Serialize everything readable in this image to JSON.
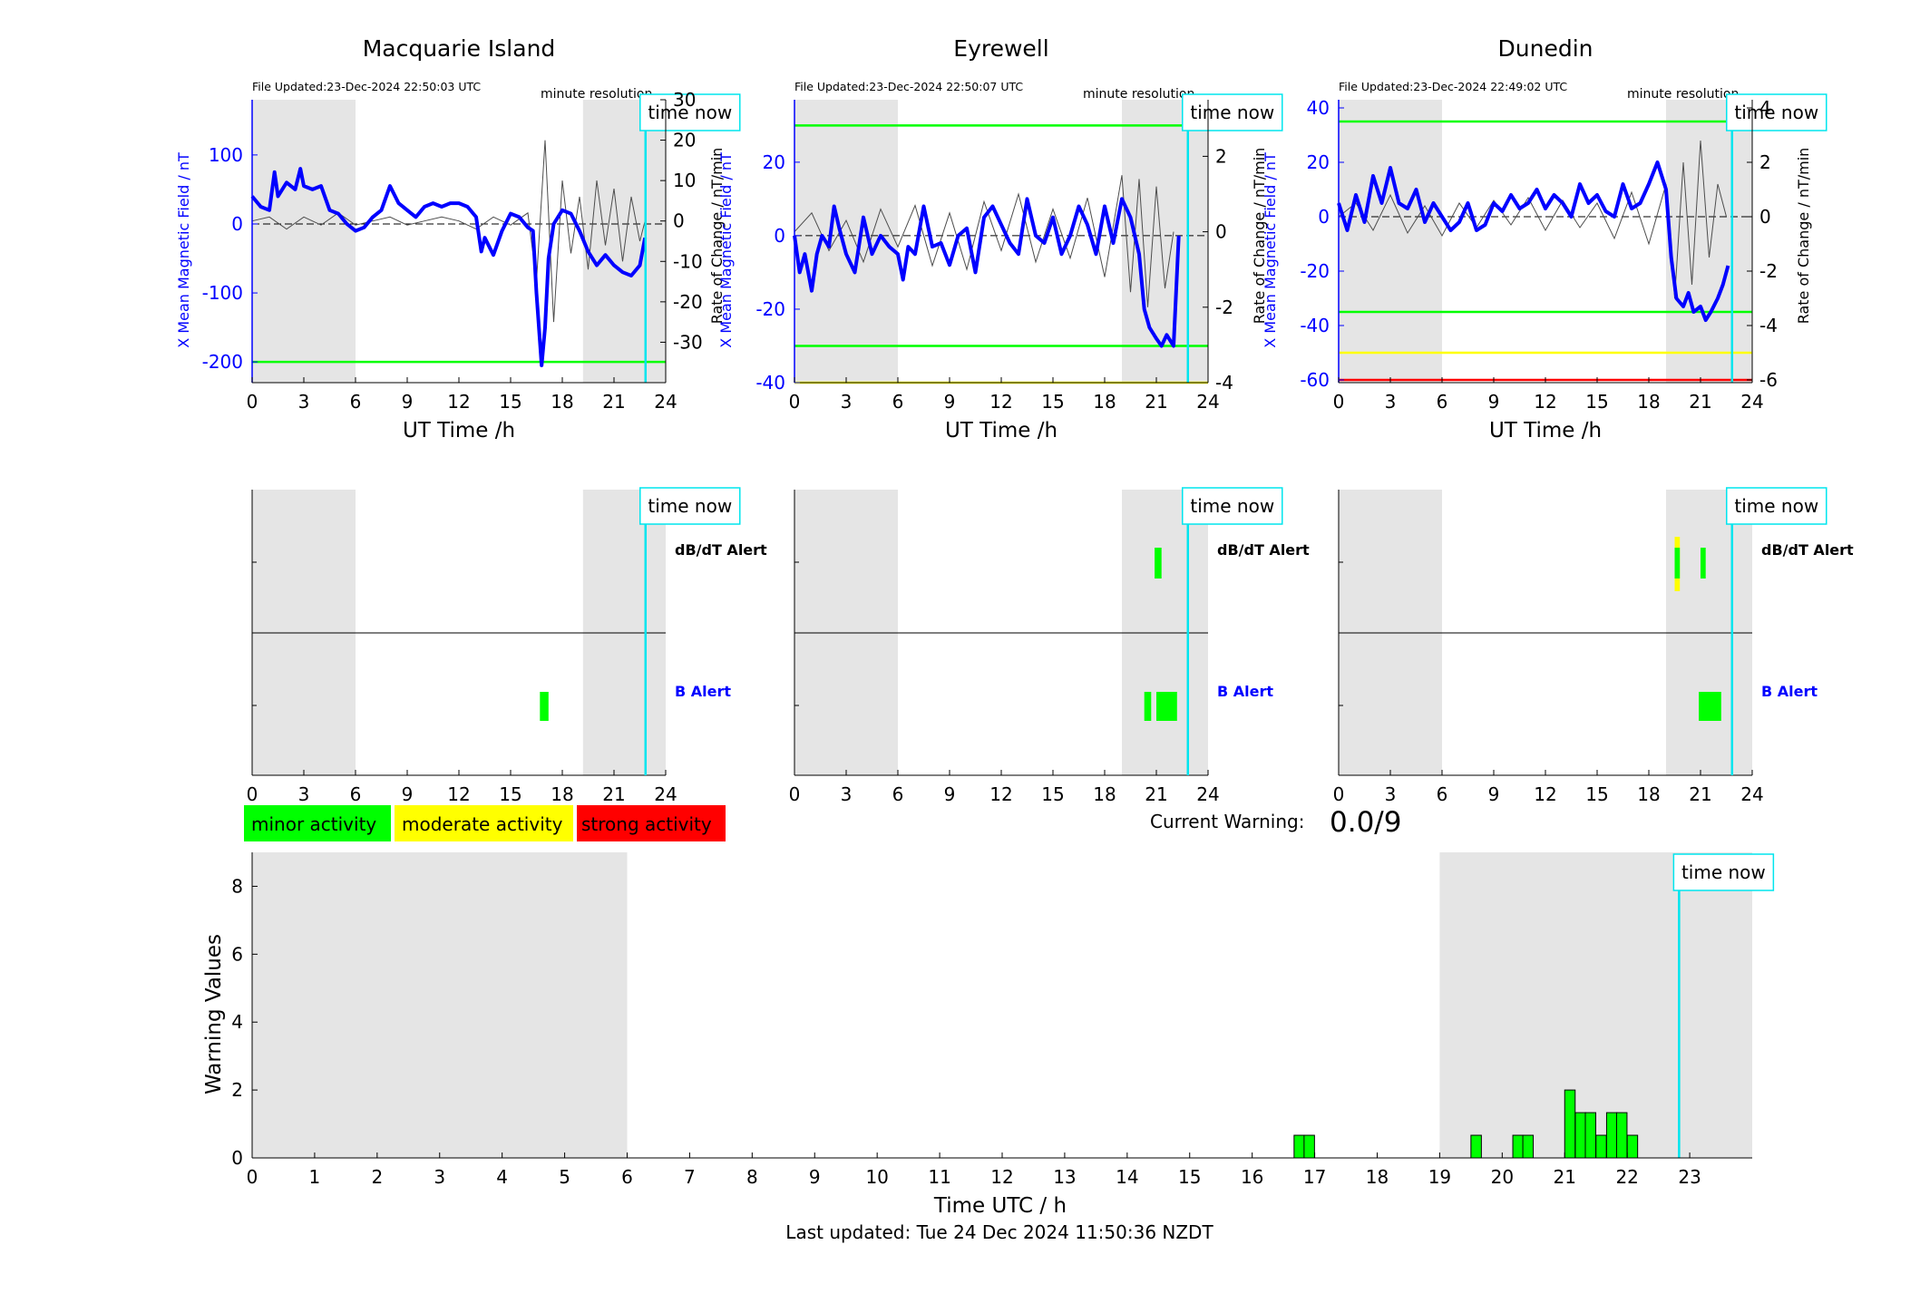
{
  "colors": {
    "shade": "#e5e5e5",
    "field_line": "#0000ff",
    "rate_line": "#4d4d4d",
    "time_now": "#00e5ee",
    "minor": "#00ff00",
    "moderate": "#ffff00",
    "strong": "#ff0000"
  },
  "common": {
    "minute_resolution": "minute resolution",
    "time_now_label": "time now",
    "x_label": "UT Time /h",
    "y_left_label": "X Mean Magnetic Field / nT",
    "y_right_label": "Rate of Change / nT/min",
    "dbdt_alert": "dB/dT Alert",
    "b_alert": "B Alert",
    "x_ticks": [
      "0",
      "3",
      "6",
      "9",
      "12",
      "15",
      "18",
      "21",
      "24"
    ]
  },
  "chart_data": [
    {
      "type": "line",
      "station": "Macquarie Island",
      "title": "Macquarie Island",
      "file_updated": "File Updated:23-Dec-2024 22:50:03 UTC",
      "xlim": [
        0,
        24
      ],
      "ylim_left": [
        -230,
        180
      ],
      "ylim_right": [
        -40,
        30
      ],
      "y_left_ticks": [
        "100",
        "0",
        "-100",
        "-200"
      ],
      "y_left_values": [
        100,
        0,
        -100,
        -200
      ],
      "y_right_ticks": [
        "30",
        "20",
        "10",
        "0",
        "-10",
        "-20",
        "-30"
      ],
      "y_right_values": [
        30,
        20,
        10,
        0,
        -10,
        -20,
        -30
      ],
      "shaded_intervals": [
        [
          0,
          6
        ],
        [
          19.2,
          24
        ]
      ],
      "threshold_lines": [
        {
          "value": -200,
          "color": "#00ff00"
        }
      ],
      "time_now": 22.83,
      "series": [
        {
          "axis": "left",
          "x": [
            0,
            0.5,
            1,
            1.3,
            1.5,
            2,
            2.5,
            2.8,
            3,
            3.5,
            4,
            4.5,
            5,
            5.5,
            6,
            6.5,
            7,
            7.5,
            8,
            8.5,
            9,
            9.5,
            10,
            10.5,
            11,
            11.5,
            12,
            12.5,
            13,
            13.3,
            13.5,
            14,
            14.5,
            15,
            15.5,
            16,
            16.3,
            16.5,
            16.7,
            16.8,
            17,
            17.2,
            17.5,
            18,
            18.5,
            19,
            19.5,
            20,
            20.5,
            21,
            21.5,
            22,
            22.5,
            22.8
          ],
          "y": [
            40,
            25,
            20,
            75,
            40,
            60,
            50,
            80,
            55,
            50,
            55,
            20,
            15,
            0,
            -10,
            -5,
            10,
            20,
            55,
            30,
            20,
            10,
            25,
            30,
            25,
            30,
            30,
            25,
            10,
            -40,
            -20,
            -45,
            -10,
            15,
            10,
            -5,
            -10,
            -100,
            -170,
            -205,
            -150,
            -50,
            0,
            20,
            15,
            -10,
            -40,
            -60,
            -45,
            -60,
            -70,
            -75,
            -60,
            -20
          ]
        },
        {
          "axis": "right",
          "x": [
            0,
            1,
            2,
            3,
            4,
            5,
            6,
            7,
            8,
            9,
            10,
            11,
            12,
            13,
            14,
            15,
            16,
            16.5,
            17,
            17.5,
            18,
            18.5,
            19,
            19.5,
            20,
            20.5,
            21,
            21.5,
            22,
            22.5,
            22.8
          ],
          "y": [
            0,
            1,
            -2,
            1,
            -1,
            2,
            -1,
            0,
            1,
            -1,
            0,
            1,
            0,
            -2,
            1,
            -1,
            2,
            -15,
            20,
            -25,
            10,
            -8,
            6,
            -12,
            10,
            -6,
            8,
            -10,
            6,
            -5,
            0
          ]
        }
      ]
    },
    {
      "type": "line",
      "station": "Eyrewell",
      "title": "Eyrewell",
      "file_updated": "File Updated:23-Dec-2024 22:50:07 UTC",
      "xlim": [
        0,
        24
      ],
      "ylim_left": [
        -40,
        37
      ],
      "ylim_right": [
        -4,
        3.5
      ],
      "y_left_ticks": [
        "20",
        "0",
        "-20",
        "-40"
      ],
      "y_left_values": [
        20,
        0,
        -20,
        -40
      ],
      "y_right_ticks": [
        "2",
        "0",
        "-2",
        "-4"
      ],
      "y_right_values": [
        2,
        0,
        -2,
        -4
      ],
      "shaded_intervals": [
        [
          0,
          6
        ],
        [
          19,
          24
        ]
      ],
      "threshold_lines": [
        {
          "value": 30,
          "color": "#00ff00"
        },
        {
          "value": -30,
          "color": "#00ff00"
        },
        {
          "value": -40,
          "color": "#ffff00"
        }
      ],
      "time_now": 22.83,
      "series": [
        {
          "axis": "left",
          "x": [
            0,
            0.3,
            0.6,
            1,
            1.3,
            1.6,
            2,
            2.3,
            2.6,
            3,
            3.5,
            4,
            4.5,
            5,
            5.5,
            6,
            6.3,
            6.6,
            7,
            7.5,
            8,
            8.5,
            9,
            9.5,
            10,
            10.5,
            11,
            11.5,
            12,
            12.5,
            13,
            13.5,
            14,
            14.5,
            15,
            15.5,
            16,
            16.5,
            17,
            17.5,
            18,
            18.5,
            19,
            19.5,
            20,
            20.3,
            20.6,
            21,
            21.3,
            21.6,
            22,
            22.3
          ],
          "y": [
            0,
            -10,
            -5,
            -15,
            -5,
            0,
            -3,
            8,
            2,
            -5,
            -10,
            5,
            -5,
            0,
            -3,
            -5,
            -12,
            -3,
            -5,
            8,
            -3,
            -2,
            -8,
            0,
            2,
            -10,
            5,
            8,
            3,
            -2,
            -5,
            10,
            0,
            -2,
            5,
            -5,
            0,
            8,
            3,
            -5,
            8,
            -2,
            10,
            5,
            -5,
            -20,
            -25,
            -28,
            -30,
            -27,
            -30,
            0
          ]
        },
        {
          "axis": "right",
          "x": [
            0,
            1,
            2,
            3,
            4,
            5,
            6,
            7,
            8,
            9,
            10,
            11,
            12,
            13,
            14,
            15,
            16,
            17,
            18,
            19,
            19.5,
            20,
            20.5,
            21,
            21.5,
            22
          ],
          "y": [
            0,
            0.5,
            -0.5,
            0.3,
            -0.8,
            0.6,
            -0.4,
            0.7,
            -0.9,
            0.5,
            -1,
            0.8,
            -0.5,
            1,
            -0.8,
            0.6,
            -0.7,
            0.9,
            -1.2,
            1.5,
            -1.6,
            1.4,
            -2,
            1.2,
            -1.5,
            0
          ]
        }
      ]
    },
    {
      "type": "line",
      "station": "Dunedin",
      "title": "Dunedin",
      "file_updated": "File Updated:23-Dec-2024 22:49:02 UTC",
      "xlim": [
        0,
        24
      ],
      "ylim_left": [
        -61,
        43
      ],
      "ylim_right": [
        -6.1,
        4.3
      ],
      "y_left_ticks": [
        "40",
        "20",
        "0",
        "-20",
        "-40",
        "-60"
      ],
      "y_left_values": [
        40,
        20,
        0,
        -20,
        -40,
        -60
      ],
      "y_right_ticks": [
        "4",
        "2",
        "0",
        "-2",
        "-4",
        "-6"
      ],
      "y_right_values": [
        4,
        2,
        0,
        -2,
        -4,
        -6
      ],
      "shaded_intervals": [
        [
          0,
          6
        ],
        [
          19,
          24
        ]
      ],
      "threshold_lines": [
        {
          "value": 35,
          "color": "#00ff00"
        },
        {
          "value": -35,
          "color": "#00ff00"
        },
        {
          "value": -50,
          "color": "#ffff00"
        },
        {
          "value": -60,
          "color": "#ff0000"
        }
      ],
      "time_now": 22.83,
      "series": [
        {
          "axis": "left",
          "x": [
            0,
            0.5,
            1,
            1.5,
            2,
            2.5,
            3,
            3.5,
            4,
            4.5,
            5,
            5.5,
            6,
            6.5,
            7,
            7.5,
            8,
            8.5,
            9,
            9.5,
            10,
            10.5,
            11,
            11.5,
            12,
            12.5,
            13,
            13.5,
            14,
            14.5,
            15,
            15.5,
            16,
            16.5,
            17,
            17.5,
            18,
            18.5,
            19,
            19.3,
            19.6,
            20,
            20.3,
            20.6,
            21,
            21.3,
            21.6,
            22,
            22.3,
            22.6
          ],
          "y": [
            5,
            -5,
            8,
            -2,
            15,
            5,
            18,
            5,
            3,
            10,
            -2,
            5,
            0,
            -5,
            -2,
            5,
            -5,
            -3,
            5,
            2,
            8,
            3,
            5,
            10,
            3,
            8,
            5,
            0,
            12,
            5,
            8,
            2,
            0,
            12,
            3,
            5,
            12,
            20,
            10,
            -15,
            -30,
            -33,
            -28,
            -35,
            -33,
            -38,
            -35,
            -30,
            -25,
            -18
          ]
        },
        {
          "axis": "right",
          "x": [
            0,
            1,
            2,
            3,
            4,
            5,
            6,
            7,
            8,
            9,
            10,
            11,
            12,
            13,
            14,
            15,
            16,
            17,
            18,
            19,
            19.5,
            20,
            20.5,
            21,
            21.5,
            22,
            22.5
          ],
          "y": [
            0,
            0.5,
            -0.5,
            0.8,
            -0.6,
            0.4,
            -0.7,
            0.5,
            -0.4,
            0.6,
            -0.3,
            0.7,
            -0.5,
            0.6,
            -0.4,
            0.5,
            -0.8,
            0.9,
            -1,
            1.2,
            -3,
            2,
            -2.5,
            2.8,
            -1.5,
            1.2,
            0
          ]
        }
      ]
    }
  ],
  "alerts": [
    {
      "station": "Macquarie Island",
      "dbdt": [],
      "b": [
        {
          "start": 16.7,
          "end": 17.2,
          "color": "#00ff00"
        }
      ]
    },
    {
      "station": "Eyrewell",
      "dbdt": [
        {
          "start": 20.9,
          "end": 21.3,
          "color": "#00ff00"
        }
      ],
      "b": [
        {
          "start": 20.3,
          "end": 20.7,
          "color": "#00ff00"
        },
        {
          "start": 21.0,
          "end": 22.2,
          "color": "#00ff00"
        }
      ]
    },
    {
      "station": "Dunedin",
      "dbdt": [
        {
          "start": 19.5,
          "end": 19.8,
          "color": "#ffff00",
          "inner": "#00ff00"
        },
        {
          "start": 21.0,
          "end": 21.3,
          "color": "#00ff00"
        }
      ],
      "b": [
        {
          "start": 20.9,
          "end": 22.2,
          "color": "#00ff00"
        }
      ]
    }
  ],
  "legend": [
    {
      "label": "minor activity",
      "color": "#00ff00"
    },
    {
      "label": "moderate activity",
      "color": "#ffff00"
    },
    {
      "label": "strong activity",
      "color": "#ff0000"
    }
  ],
  "current_warning": {
    "label": "Current Warning:",
    "value": "0.0/9"
  },
  "warning_chart": {
    "type": "bar",
    "x_label": "Time UTC / h",
    "y_label": "Warning Values",
    "xlim": [
      0,
      24
    ],
    "ylim": [
      0,
      9
    ],
    "x_ticks": [
      "0",
      "1",
      "2",
      "3",
      "4",
      "5",
      "6",
      "7",
      "8",
      "9",
      "10",
      "11",
      "12",
      "13",
      "14",
      "15",
      "16",
      "17",
      "18",
      "19",
      "20",
      "21",
      "22",
      "23"
    ],
    "y_ticks": [
      "0",
      "2",
      "4",
      "6",
      "8"
    ],
    "shaded_intervals": [
      [
        0,
        6
      ],
      [
        19,
        24
      ]
    ],
    "time_now": 22.83,
    "bar_width_h": 0.1667,
    "bars": [
      {
        "x": 16.67,
        "value": 0.667
      },
      {
        "x": 16.83,
        "value": 0.667
      },
      {
        "x": 19.5,
        "value": 0.667
      },
      {
        "x": 20.17,
        "value": 0.667
      },
      {
        "x": 20.33,
        "value": 0.667
      },
      {
        "x": 21.0,
        "value": 2.0
      },
      {
        "x": 21.17,
        "value": 1.333
      },
      {
        "x": 21.33,
        "value": 1.333
      },
      {
        "x": 21.5,
        "value": 0.667
      },
      {
        "x": 21.67,
        "value": 1.333
      },
      {
        "x": 21.83,
        "value": 1.333
      },
      {
        "x": 22.0,
        "value": 0.667
      }
    ]
  },
  "last_updated": "Last updated: Tue 24 Dec 2024 11:50:36 NZDT"
}
